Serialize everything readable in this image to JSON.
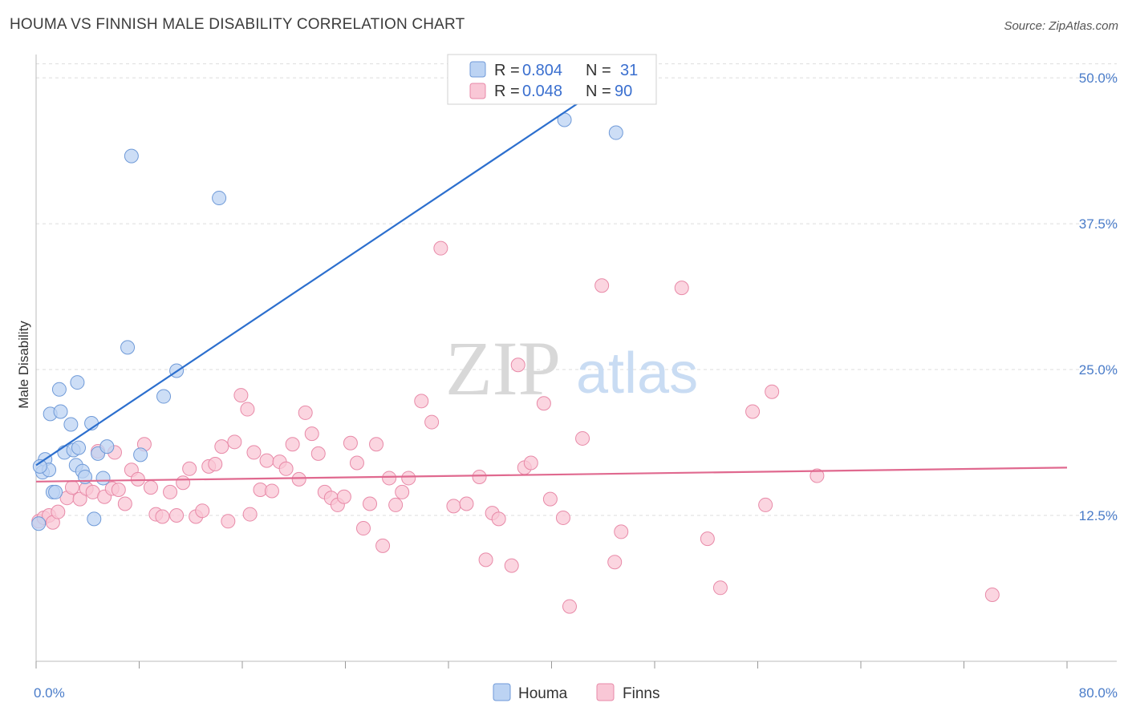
{
  "title": "HOUMA VS FINNISH MALE DISABILITY CORRELATION CHART",
  "source": "Source: ZipAtlas.com",
  "watermark": {
    "zip": "ZIP",
    "atlas": "atlas"
  },
  "colors": {
    "houma_fill": "#bcd3f3",
    "houma_stroke": "#6f9ad8",
    "houma_line": "#2c6fce",
    "finns_fill": "#f9c7d6",
    "finns_stroke": "#e88aa8",
    "finns_line": "#e0698f",
    "tick_label": "#4a7cc9",
    "grid": "#dddddd"
  },
  "legend": {
    "row1": {
      "r_label": "R = ",
      "r_value": "0.804",
      "n_label": "N = ",
      "n_value": "31"
    },
    "row2": {
      "r_label": "R = ",
      "r_value": "0.048",
      "n_label": "N = ",
      "n_value": "90"
    }
  },
  "bottom_legend": {
    "houma": "Houma",
    "finns": "Finns"
  },
  "chart_data": {
    "type": "scatter",
    "title": "HOUMA VS FINNISH MALE DISABILITY CORRELATION CHART",
    "xlabel": "",
    "ylabel": "Male Disability",
    "xlim": [
      0,
      80
    ],
    "ylim": [
      0,
      52
    ],
    "x_tick_labels": [
      "0.0%",
      "80.0%"
    ],
    "y_ticks": [
      12.5,
      25.0,
      37.5,
      50.0
    ],
    "y_tick_labels": [
      "12.5%",
      "25.0%",
      "37.5%",
      "50.0%"
    ],
    "grid": "horizontal dashed",
    "legend_position": "top-center",
    "series": [
      {
        "name": "Houma",
        "r": 0.804,
        "n": 31,
        "trend": {
          "x": [
            0.0,
            45.0
          ],
          "y": [
            16.8,
            50.0
          ]
        },
        "points": [
          [
            0.2,
            11.8
          ],
          [
            0.5,
            16.2
          ],
          [
            0.7,
            17.3
          ],
          [
            1.0,
            16.4
          ],
          [
            1.1,
            21.2
          ],
          [
            1.3,
            14.5
          ],
          [
            1.5,
            14.5
          ],
          [
            1.8,
            23.3
          ],
          [
            1.9,
            21.4
          ],
          [
            2.2,
            17.9
          ],
          [
            2.7,
            20.3
          ],
          [
            2.9,
            18.1
          ],
          [
            3.1,
            16.8
          ],
          [
            3.2,
            23.9
          ],
          [
            3.3,
            18.3
          ],
          [
            3.6,
            16.3
          ],
          [
            3.8,
            15.8
          ],
          [
            4.3,
            20.4
          ],
          [
            4.5,
            12.2
          ],
          [
            4.8,
            17.8
          ],
          [
            5.2,
            15.7
          ],
          [
            5.5,
            18.4
          ],
          [
            7.1,
            26.9
          ],
          [
            7.4,
            43.3
          ],
          [
            8.1,
            17.7
          ],
          [
            9.9,
            22.7
          ],
          [
            10.9,
            24.9
          ],
          [
            14.2,
            39.7
          ],
          [
            41.0,
            46.4
          ],
          [
            45.0,
            45.3
          ],
          [
            0.3,
            16.7
          ]
        ]
      },
      {
        "name": "Finns",
        "r": 0.048,
        "n": 90,
        "trend": {
          "x": [
            0.0,
            80.0
          ],
          "y": [
            15.4,
            16.6
          ]
        },
        "points": [
          [
            0.2,
            12.0
          ],
          [
            0.6,
            12.3
          ],
          [
            1.0,
            12.5
          ],
          [
            1.3,
            11.9
          ],
          [
            1.7,
            12.8
          ],
          [
            2.4,
            14.0
          ],
          [
            2.8,
            14.9
          ],
          [
            3.4,
            13.9
          ],
          [
            3.9,
            14.8
          ],
          [
            4.4,
            14.5
          ],
          [
            4.8,
            18.0
          ],
          [
            5.3,
            14.1
          ],
          [
            5.9,
            14.8
          ],
          [
            6.4,
            14.7
          ],
          [
            6.9,
            13.5
          ],
          [
            7.4,
            16.4
          ],
          [
            7.9,
            15.6
          ],
          [
            8.4,
            18.6
          ],
          [
            8.9,
            14.9
          ],
          [
            9.3,
            12.6
          ],
          [
            9.8,
            12.4
          ],
          [
            10.4,
            14.5
          ],
          [
            10.9,
            12.5
          ],
          [
            11.4,
            15.3
          ],
          [
            11.9,
            16.5
          ],
          [
            12.4,
            12.4
          ],
          [
            12.9,
            12.9
          ],
          [
            13.4,
            16.7
          ],
          [
            13.9,
            16.9
          ],
          [
            14.4,
            18.4
          ],
          [
            14.9,
            12.0
          ],
          [
            15.4,
            18.8
          ],
          [
            15.9,
            22.8
          ],
          [
            16.4,
            21.6
          ],
          [
            16.9,
            17.9
          ],
          [
            17.4,
            14.7
          ],
          [
            17.9,
            17.2
          ],
          [
            18.3,
            14.6
          ],
          [
            18.9,
            17.1
          ],
          [
            19.4,
            16.5
          ],
          [
            19.9,
            18.6
          ],
          [
            20.4,
            15.6
          ],
          [
            20.9,
            21.3
          ],
          [
            21.4,
            19.5
          ],
          [
            21.9,
            17.8
          ],
          [
            22.4,
            14.5
          ],
          [
            22.9,
            14.0
          ],
          [
            23.4,
            13.4
          ],
          [
            23.9,
            14.1
          ],
          [
            24.4,
            18.7
          ],
          [
            24.9,
            17.0
          ],
          [
            25.4,
            11.4
          ],
          [
            25.9,
            13.5
          ],
          [
            26.4,
            18.6
          ],
          [
            26.9,
            9.9
          ],
          [
            27.4,
            15.7
          ],
          [
            27.9,
            13.4
          ],
          [
            28.4,
            14.5
          ],
          [
            28.9,
            15.7
          ],
          [
            29.9,
            22.3
          ],
          [
            30.7,
            20.5
          ],
          [
            31.4,
            35.4
          ],
          [
            32.4,
            13.3
          ],
          [
            33.4,
            13.5
          ],
          [
            34.4,
            15.8
          ],
          [
            34.9,
            8.7
          ],
          [
            35.4,
            12.7
          ],
          [
            35.9,
            12.2
          ],
          [
            36.9,
            8.2
          ],
          [
            37.4,
            25.4
          ],
          [
            37.9,
            16.6
          ],
          [
            38.4,
            17.0
          ],
          [
            39.4,
            22.1
          ],
          [
            39.9,
            13.9
          ],
          [
            40.9,
            12.3
          ],
          [
            41.4,
            4.7
          ],
          [
            42.4,
            19.1
          ],
          [
            43.9,
            32.2
          ],
          [
            44.9,
            8.5
          ],
          [
            45.4,
            11.1
          ],
          [
            50.1,
            32.0
          ],
          [
            52.1,
            10.5
          ],
          [
            53.1,
            6.3
          ],
          [
            55.6,
            21.4
          ],
          [
            56.6,
            13.4
          ],
          [
            57.1,
            23.1
          ],
          [
            60.6,
            15.9
          ],
          [
            74.2,
            5.7
          ],
          [
            16.6,
            12.6
          ],
          [
            6.1,
            17.9
          ]
        ]
      }
    ]
  }
}
